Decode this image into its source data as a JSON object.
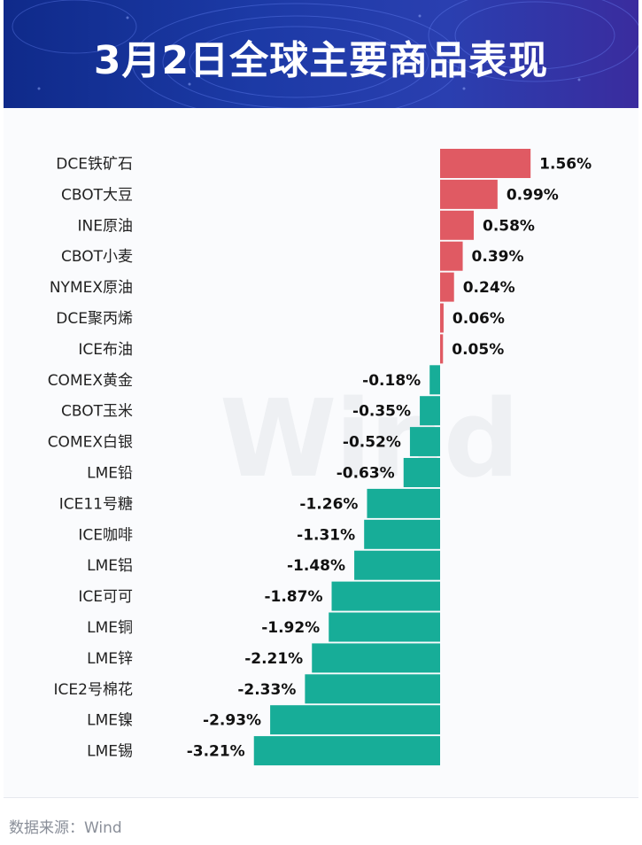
{
  "title": "3月2日全球主要商品表现",
  "watermark": "Wind",
  "source": "数据来源：Wind",
  "colors": {
    "positive": "#e05a63",
    "negative": "#17ad98",
    "banner": "#1a35a0"
  },
  "chart_data": {
    "type": "bar",
    "orientation": "horizontal",
    "categories": [
      "DCE铁矿石",
      "CBOT大豆",
      "INE原油",
      "CBOT小麦",
      "NYMEX原油",
      "DCE聚丙烯",
      "ICE布油",
      "COMEX黄金",
      "CBOT玉米",
      "COMEX白银",
      "LME铅",
      "ICE11号糖",
      "ICE咖啡",
      "LME铝",
      "ICE可可",
      "LME铜",
      "LME锌",
      "ICE2号棉花",
      "LME镍",
      "LME锡"
    ],
    "values": [
      1.56,
      0.99,
      0.58,
      0.39,
      0.24,
      0.06,
      0.05,
      -0.18,
      -0.35,
      -0.52,
      -0.63,
      -1.26,
      -1.31,
      -1.48,
      -1.87,
      -1.92,
      -2.21,
      -2.33,
      -2.93,
      -3.21
    ],
    "labels": [
      "1.56%",
      "0.99%",
      "0.58%",
      "0.39%",
      "0.24%",
      "0.06%",
      "0.05%",
      "-0.18%",
      "-0.35%",
      "-0.52%",
      "-0.63%",
      "-1.26%",
      "-1.31%",
      "-1.48%",
      "-1.87%",
      "-1.92%",
      "-2.21%",
      "-2.33%",
      "-2.93%",
      "-3.21%"
    ],
    "unit": "%",
    "grid": false,
    "legend": "none"
  }
}
